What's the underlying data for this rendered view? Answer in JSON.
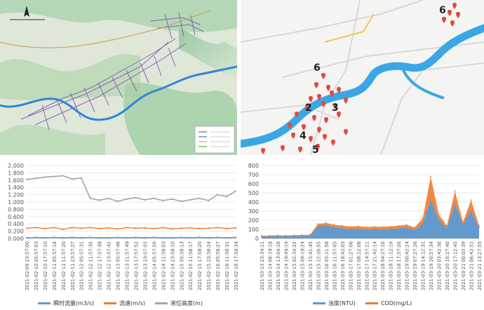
{
  "colors": {
    "flow": "#5b9bd5",
    "speed": "#ed7d31",
    "level": "#a5a5a5",
    "turbidity": "#5b9bd5",
    "cod": "#ed7d31",
    "river": "#3aa7e4",
    "pin": "#e5483d"
  },
  "map_right": {
    "zone_labels": [
      "6",
      "2",
      "3",
      "4",
      "5"
    ]
  },
  "chart_data": [
    {
      "type": "line",
      "ylim": [
        0,
        2
      ],
      "yticks": [
        "0.000",
        "0.200",
        "0.400",
        "0.600",
        "0.800",
        "1.000",
        "1.200",
        "1.400",
        "1.600",
        "1.800",
        "2.000"
      ],
      "categories": [
        "2021-02-09 23:57:00",
        "2021-02-10 05:57:03",
        "2021-02-10 17:57:10",
        "2021-02-11 05:57:18",
        "2021-02-11 11:57:20",
        "2021-02-11 23:57:27",
        "2021-02-12 05:57:31",
        "2021-02-12 11:57:35",
        "2021-02-12 17:57:38",
        "2021-02-12 23:57:42",
        "2021-02-13 05:57:46",
        "2021-02-13 11:57:49",
        "2021-02-13 17:57:52",
        "2021-02-13 23:57:55",
        "2021-02-14 05:57:59",
        "2021-02-14 11:58:03",
        "2021-02-14 23:58:10",
        "2021-02-15 05:58:13",
        "2021-02-15 11:58:17",
        "2021-02-15 17:58:20",
        "2021-02-15 23:58:24",
        "2021-02-16 05:58:27",
        "2021-02-16 11:58:31",
        "2021-02-16 17:58:34"
      ],
      "series": [
        {
          "name": "瞬时流量(m3/s)",
          "values": [
            0.02,
            0.03,
            0.02,
            0.03,
            0.02,
            0.03,
            0.02,
            0.03,
            0.02,
            0.02,
            0.03,
            0.02,
            0.03,
            0.02,
            0.03,
            0.02,
            0.02,
            0.03,
            0.02,
            0.03,
            0.02,
            0.03,
            0.02,
            0.03
          ]
        },
        {
          "name": "流速(m/s)",
          "values": [
            0.28,
            0.3,
            0.27,
            0.3,
            0.25,
            0.3,
            0.28,
            0.3,
            0.27,
            0.29,
            0.26,
            0.3,
            0.28,
            0.29,
            0.27,
            0.3,
            0.26,
            0.28,
            0.29,
            0.27,
            0.28,
            0.3,
            0.27,
            0.29
          ]
        },
        {
          "name": "液位高度(m)",
          "values": [
            1.62,
            1.65,
            1.68,
            1.7,
            1.72,
            1.63,
            1.66,
            1.1,
            1.05,
            1.1,
            1.02,
            1.08,
            1.12,
            1.06,
            1.1,
            1.04,
            1.08,
            1.02,
            1.06,
            1.1,
            1.04,
            1.2,
            1.15,
            1.3
          ]
        }
      ]
    },
    {
      "type": "area",
      "ylim": [
        0,
        800
      ],
      "yticks": [
        "0",
        "100",
        "200",
        "300",
        "400",
        "500",
        "600",
        "700",
        "800"
      ],
      "categories": [
        "2021-03-13 23:34:11",
        "2021-03-14 06:19:18",
        "2021-03-14 13:04:16",
        "2021-03-14 19:49:19",
        "2021-03-15 02:34:22",
        "2021-03-15 09:19:24",
        "2021-03-15 15:41:45",
        "2021-03-15 22:26:55",
        "2021-03-16 05:11:58",
        "2021-03-16 11:57:05",
        "2021-03-16 18:42:03",
        "2021-03-17 01:27:06",
        "2021-03-17 08:12:08",
        "2021-03-17 14:57:11",
        "2021-03-17 21:42:14",
        "2021-03-18 04:27:16",
        "2021-03-18 11:12:18",
        "2021-03-18 17:57:26",
        "2021-03-19 00:42:24",
        "2021-03-19 07:27:26",
        "2021-03-19 14:12:31",
        "2021-03-19 20:57:34",
        "2021-03-20 03:42:36",
        "2021-03-20 10:27:40",
        "2021-03-20 17:12:45",
        "2021-03-21 00:03:39",
        "2021-03-21 06:42:51",
        "2021-03-21 13:27:55"
      ],
      "series": [
        {
          "name": "浊度(NTU)",
          "values": [
            20,
            22,
            25,
            24,
            26,
            28,
            30,
            130,
            140,
            120,
            110,
            100,
            105,
            95,
            100,
            98,
            102,
            110,
            120,
            90,
            160,
            420,
            200,
            110,
            380,
            150,
            300,
            120
          ]
        },
        {
          "name": "COD(mg/L)",
          "values": [
            30,
            32,
            35,
            33,
            36,
            38,
            40,
            160,
            170,
            150,
            140,
            130,
            135,
            125,
            130,
            128,
            132,
            140,
            150,
            120,
            220,
            680,
            260,
            140,
            520,
            180,
            420,
            140
          ]
        }
      ]
    }
  ]
}
